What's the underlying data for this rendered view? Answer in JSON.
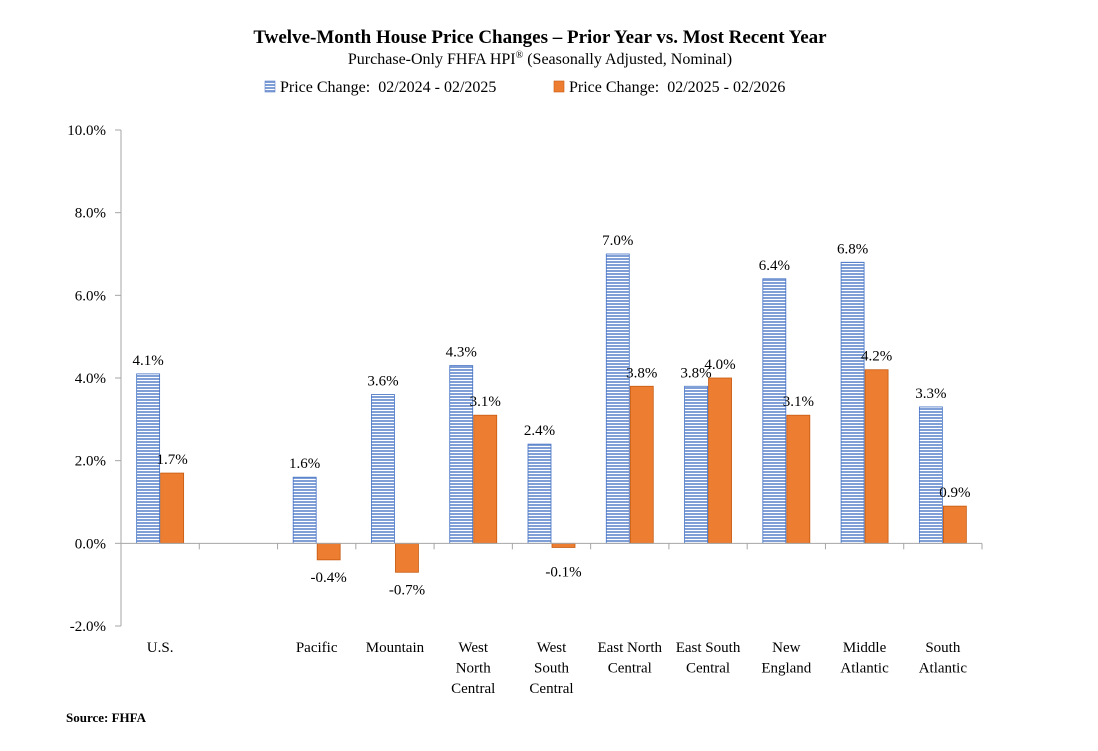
{
  "chart_data": {
    "type": "bar",
    "title": "Twelve-Month House Price Changes – Prior Year vs. Most Recent Year",
    "subtitle": "Purchase-Only FHFA HPI",
    "subtitle_sup": "®",
    "subtitle_suffix": " (Seasonally Adjusted, Nominal)",
    "source": "Source: FHFA",
    "ylim": [
      -2.0,
      10.0
    ],
    "yticks": [
      -2.0,
      0.0,
      2.0,
      4.0,
      6.0,
      8.0,
      10.0
    ],
    "ytick_labels": [
      "-2.0%",
      "0.0%",
      "2.0%",
      "4.0%",
      "6.0%",
      "8.0%",
      "10.0%"
    ],
    "grid": false,
    "legend_position": "top-center",
    "categories": [
      [
        "U.S."
      ],
      [],
      [
        "Pacific"
      ],
      [
        "Mountain"
      ],
      [
        "West",
        "North",
        "Central"
      ],
      [
        "West",
        "South",
        "Central"
      ],
      [
        "East North",
        "Central"
      ],
      [
        "East South",
        "Central"
      ],
      [
        "New",
        "England"
      ],
      [
        "Middle",
        "Atlantic"
      ],
      [
        "South",
        "Atlantic"
      ]
    ],
    "series": [
      {
        "name": "Price Change:  02/2024 - 02/2025",
        "color": "#8eaadb",
        "pattern": "horizontal-stripes",
        "values": [
          4.1,
          null,
          1.6,
          3.6,
          4.3,
          2.4,
          7.0,
          3.8,
          6.4,
          6.8,
          3.3
        ],
        "labels": [
          "4.1%",
          "",
          "1.6%",
          "3.6%",
          "4.3%",
          "2.4%",
          "7.0%",
          "3.8%",
          "6.4%",
          "6.8%",
          "3.3%"
        ]
      },
      {
        "name": "Price Change:  02/2025 - 02/2026",
        "color": "#ed7d31",
        "pattern": "solid",
        "values": [
          1.7,
          null,
          -0.4,
          -0.7,
          3.1,
          -0.1,
          3.8,
          4.0,
          3.1,
          4.2,
          0.9
        ],
        "labels": [
          "1.7%",
          "",
          "-0.4%",
          "-0.7%",
          "3.1%",
          "-0.1%",
          "3.8%",
          "4.0%",
          "3.1%",
          "4.2%",
          "0.9%"
        ]
      }
    ]
  }
}
